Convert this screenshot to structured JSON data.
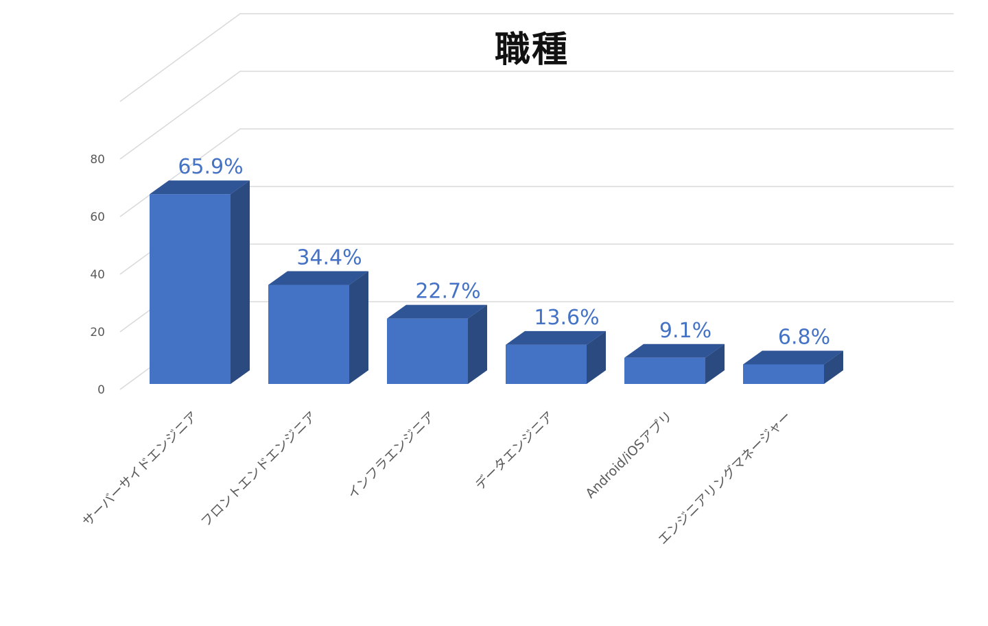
{
  "chart_data": {
    "type": "bar",
    "title": "職種",
    "categories": [
      "サーバーサイドエンジニア",
      "フロントエンドエンジニア",
      "インフラエンジニア",
      "データエンジニア",
      "Android/iOSアプリ",
      "エンジニアリングマネージャー"
    ],
    "values": [
      65.9,
      34.4,
      22.7,
      13.6,
      9.1,
      6.8
    ],
    "data_labels": [
      "65.9%",
      "34.4%",
      "22.7%",
      "13.6%",
      "9.1%",
      "6.8%"
    ],
    "y_ticks": [
      "0",
      "20",
      "40",
      "60",
      "80"
    ],
    "ylim": [
      0,
      100
    ],
    "three_d": true,
    "grid": true,
    "colors": {
      "front": "#4472C4",
      "top": "#2F5597",
      "side": "#2B4A80"
    }
  }
}
